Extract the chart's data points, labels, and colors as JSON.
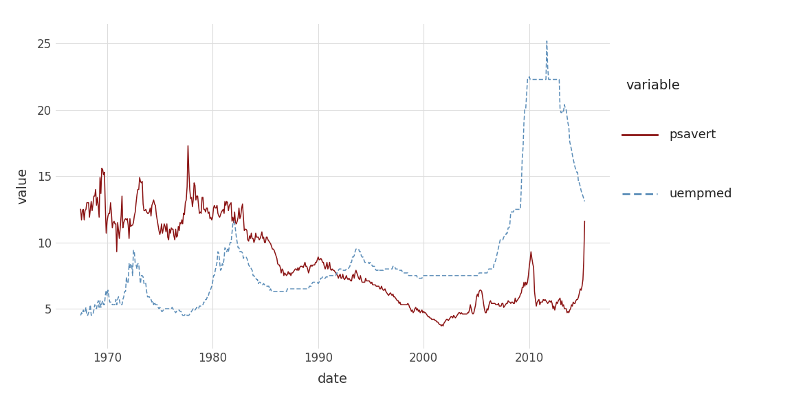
{
  "xlabel": "date",
  "ylabel": "value",
  "legend_title": "variable",
  "psavert_color": "#8B1414",
  "uempmed_color": "#5B8DB8",
  "psavert_linestyle": "-",
  "uempmed_linestyle": "--",
  "psavert_linewidth": 1.1,
  "uempmed_linewidth": 1.1,
  "background_color": "#FFFFFF",
  "panel_background": "#FFFFFF",
  "grid_color": "#DDDDDD",
  "ylim": [
    2.0,
    26.5
  ],
  "yticks": [
    5,
    10,
    15,
    20,
    25
  ],
  "xtick_years": [
    1970,
    1980,
    1990,
    2000,
    2010
  ],
  "axis_label_fontsize": 14,
  "tick_fontsize": 12,
  "legend_fontsize": 13,
  "legend_title_fontsize": 14
}
